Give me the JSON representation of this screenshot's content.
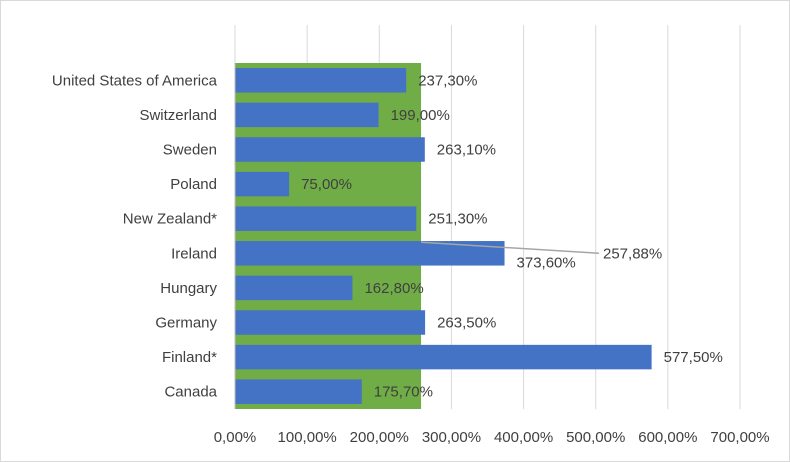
{
  "chart_data": {
    "type": "bar",
    "orientation": "horizontal",
    "categories": [
      "United States of America",
      "Switzerland",
      "Sweden",
      "Poland",
      "New Zealand*",
      "Ireland",
      "Hungary",
      "Germany",
      "Finland*",
      "Canada"
    ],
    "values": [
      237.3,
      199.0,
      263.1,
      75.0,
      251.3,
      373.6,
      162.8,
      263.5,
      577.5,
      175.7
    ],
    "value_labels": [
      "237,30%",
      "199,00%",
      "263,10%",
      "75,00%",
      "251,30%",
      "373,60%",
      "162,80%",
      "263,50%",
      "577,50%",
      "175,70%"
    ],
    "x_ticks": [
      "0,00%",
      "100,00%",
      "200,00%",
      "300,00%",
      "400,00%",
      "500,00%",
      "600,00%",
      "700,00%"
    ],
    "xlim": [
      0,
      700
    ],
    "average": {
      "value": 257.88,
      "label": "257,88%",
      "band_color": "#70ad47"
    },
    "bar_color": "#4472c4",
    "grid": true,
    "title": "",
    "xlabel": "",
    "ylabel": ""
  }
}
